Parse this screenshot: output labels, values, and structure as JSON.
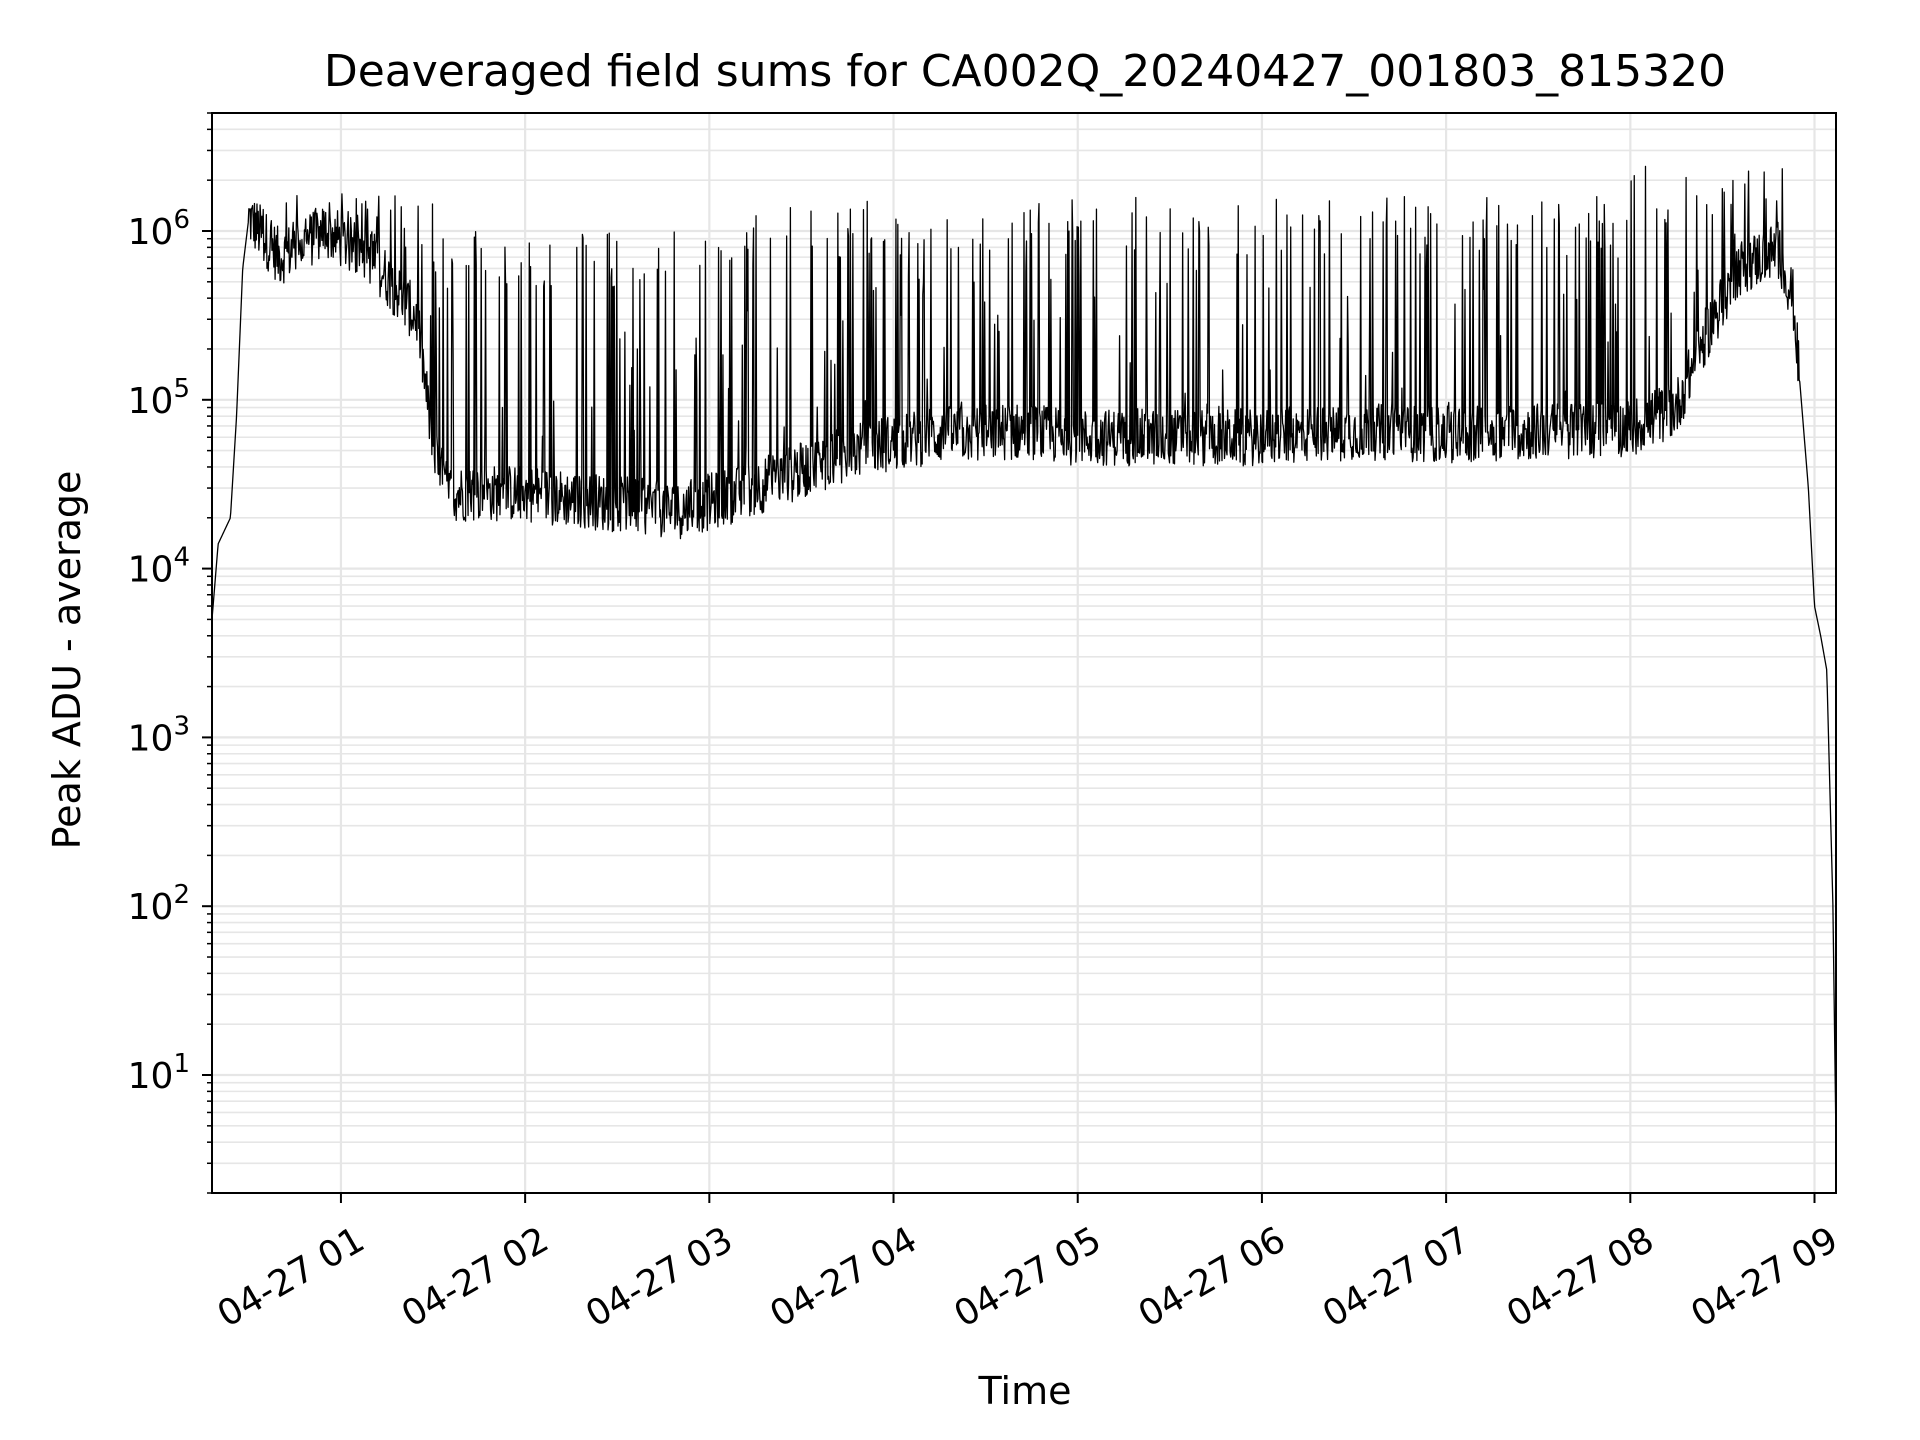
{
  "chart_data": {
    "type": "line",
    "title": "Deaveraged field sums for CA002Q_20240427_001803_815320",
    "xlabel": "Time",
    "ylabel": "Peak ADU - average",
    "y_scale": "log",
    "ylim": [
      2,
      5000000
    ],
    "xlim": [
      "2024-04-27 00:18",
      "2024-04-27 09:07"
    ],
    "grid": true,
    "line_color": "#000000",
    "grid_color": "#e6e6e6",
    "x_ticks": [
      {
        "t": "2024-04-27 01:00",
        "label": "04-27 01"
      },
      {
        "t": "2024-04-27 02:00",
        "label": "04-27 02"
      },
      {
        "t": "2024-04-27 03:00",
        "label": "04-27 03"
      },
      {
        "t": "2024-04-27 04:00",
        "label": "04-27 04"
      },
      {
        "t": "2024-04-27 05:00",
        "label": "04-27 05"
      },
      {
        "t": "2024-04-27 06:00",
        "label": "04-27 06"
      },
      {
        "t": "2024-04-27 07:00",
        "label": "04-27 07"
      },
      {
        "t": "2024-04-27 08:00",
        "label": "04-27 08"
      },
      {
        "t": "2024-04-27 09:00",
        "label": "04-27 09"
      }
    ],
    "y_ticks": [
      {
        "value": 10,
        "base": "10",
        "exp": "1"
      },
      {
        "value": 100,
        "base": "10",
        "exp": "2"
      },
      {
        "value": 1000,
        "base": "10",
        "exp": "3"
      },
      {
        "value": 10000,
        "base": "10",
        "exp": "4"
      },
      {
        "value": 100000,
        "base": "10",
        "exp": "5"
      },
      {
        "value": 1000000,
        "base": "10",
        "exp": "6"
      }
    ],
    "series": [
      {
        "baseline": [
          {
            "t": "2024-04-27 00:18",
            "y": 5000
          },
          {
            "t": "2024-04-27 00:20",
            "y": 14000
          },
          {
            "t": "2024-04-27 00:24",
            "y": 20000
          },
          {
            "t": "2024-04-27 00:26",
            "y": 80000
          },
          {
            "t": "2024-04-27 00:28",
            "y": 600000
          },
          {
            "t": "2024-04-27 00:30",
            "y": 1200000
          },
          {
            "t": "2024-04-27 00:40",
            "y": 700000
          },
          {
            "t": "2024-04-27 00:55",
            "y": 1000000
          },
          {
            "t": "2024-04-27 01:10",
            "y": 700000
          },
          {
            "t": "2024-04-27 01:25",
            "y": 300000
          },
          {
            "t": "2024-04-27 01:30",
            "y": 50000
          },
          {
            "t": "2024-04-27 01:35",
            "y": 28000
          },
          {
            "t": "2024-04-27 02:00",
            "y": 28000
          },
          {
            "t": "2024-04-27 02:30",
            "y": 24000
          },
          {
            "t": "2024-04-27 02:50",
            "y": 22000
          },
          {
            "t": "2024-04-27 03:10",
            "y": 28000
          },
          {
            "t": "2024-04-27 03:30",
            "y": 38000
          },
          {
            "t": "2024-04-27 03:50",
            "y": 52000
          },
          {
            "t": "2024-04-27 04:15",
            "y": 62000
          },
          {
            "t": "2024-04-27 04:40",
            "y": 65000
          },
          {
            "t": "2024-04-27 05:00",
            "y": 60000
          },
          {
            "t": "2024-04-27 05:30",
            "y": 60000
          },
          {
            "t": "2024-04-27 06:00",
            "y": 60000
          },
          {
            "t": "2024-04-27 06:30",
            "y": 65000
          },
          {
            "t": "2024-04-27 07:00",
            "y": 62000
          },
          {
            "t": "2024-04-27 07:30",
            "y": 65000
          },
          {
            "t": "2024-04-27 08:00",
            "y": 68000
          },
          {
            "t": "2024-04-27 08:15",
            "y": 90000
          },
          {
            "t": "2024-04-27 08:25",
            "y": 250000
          },
          {
            "t": "2024-04-27 08:35",
            "y": 600000
          },
          {
            "t": "2024-04-27 08:48",
            "y": 780000
          },
          {
            "t": "2024-04-27 08:53",
            "y": 400000
          },
          {
            "t": "2024-04-27 08:58",
            "y": 30000
          },
          {
            "t": "2024-04-27 09:00",
            "y": 6000
          },
          {
            "t": "2024-04-27 09:02",
            "y": 4000
          },
          {
            "t": "2024-04-27 09:04",
            "y": 2500
          },
          {
            "t": "2024-04-27 09:06",
            "y": 100
          },
          {
            "t": "2024-04-27 09:07",
            "y": 4
          }
        ],
        "spike_envelope": [
          {
            "from": "2024-04-27 00:28",
            "to": "2024-04-27 01:30",
            "peak": 1800000
          },
          {
            "from": "2024-04-27 01:30",
            "to": "2024-04-27 03:00",
            "peak": 1000000
          },
          {
            "from": "2024-04-27 03:00",
            "to": "2024-04-27 03:50",
            "peak": 1400000
          },
          {
            "from": "2024-04-27 03:50",
            "to": "2024-04-27 08:00",
            "peak": 1600000
          },
          {
            "from": "2024-04-27 08:00",
            "to": "2024-04-27 08:50",
            "peak": 2500000
          }
        ]
      }
    ]
  }
}
